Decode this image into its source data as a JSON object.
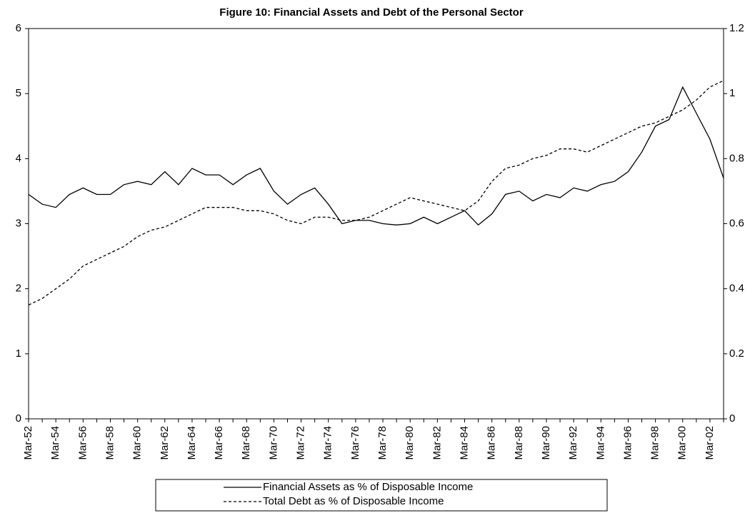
{
  "chart_data": {
    "type": "line",
    "title": "Figure 10: Financial Assets and Debt of the Personal Sector",
    "categories": [
      "Mar-52",
      null,
      "Mar-54",
      null,
      "Mar-56",
      null,
      "Mar-58",
      null,
      "Mar-60",
      null,
      "Mar-62",
      null,
      "Mar-64",
      null,
      "Mar-66",
      null,
      "Mar-68",
      null,
      "Mar-70",
      null,
      "Mar-72",
      null,
      "Mar-74",
      null,
      "Mar-76",
      null,
      "Mar-78",
      null,
      "Mar-80",
      null,
      "Mar-82",
      null,
      "Mar-84",
      null,
      "Mar-86",
      null,
      "Mar-88",
      null,
      "Mar-90",
      null,
      "Mar-92",
      null,
      "Mar-94",
      null,
      "Mar-96",
      null,
      "Mar-98",
      null,
      "Mar-00",
      null,
      "Mar-02",
      null
    ],
    "series": [
      {
        "name": "Financial Assets as % of Disposable Income",
        "color": "#000000",
        "dashed": false,
        "values": [
          3.45,
          3.3,
          3.25,
          3.45,
          3.55,
          3.45,
          3.45,
          3.6,
          3.65,
          3.6,
          3.8,
          3.6,
          3.85,
          3.75,
          3.75,
          3.6,
          3.75,
          3.85,
          3.5,
          3.3,
          3.45,
          3.55,
          3.3,
          3.0,
          3.05,
          3.05,
          3.0,
          2.98,
          3.0,
          3.1,
          3.0,
          3.1,
          3.2,
          2.98,
          3.15,
          3.45,
          3.5,
          3.35,
          3.45,
          3.4,
          3.55,
          3.5,
          3.6,
          3.65,
          3.8,
          4.1,
          4.5,
          4.6,
          5.1,
          4.7,
          4.3,
          3.7
        ]
      },
      {
        "name": "Total Debt as % of Disposable Income",
        "color": "#000000",
        "dashed": true,
        "axis": "y2",
        "values": [
          0.35,
          0.37,
          0.4,
          0.43,
          0.47,
          0.49,
          0.51,
          0.53,
          0.56,
          0.58,
          0.59,
          0.61,
          0.63,
          0.65,
          0.65,
          0.65,
          0.64,
          0.64,
          0.63,
          0.61,
          0.6,
          0.62,
          0.62,
          0.61,
          0.61,
          0.62,
          0.64,
          0.66,
          0.68,
          0.67,
          0.66,
          0.65,
          0.64,
          0.67,
          0.73,
          0.77,
          0.78,
          0.8,
          0.81,
          0.83,
          0.83,
          0.82,
          0.84,
          0.86,
          0.88,
          0.9,
          0.91,
          0.93,
          0.95,
          0.98,
          1.02,
          1.04
        ]
      }
    ],
    "ylim": [
      0,
      6
    ],
    "yticks": [
      0,
      1,
      2,
      3,
      4,
      5,
      6
    ],
    "y2lim": [
      0,
      1.2
    ],
    "y2ticks": [
      0,
      0.2,
      0.4,
      0.6,
      0.8,
      1,
      1.2
    ],
    "grid": false,
    "legend": "bottom"
  }
}
